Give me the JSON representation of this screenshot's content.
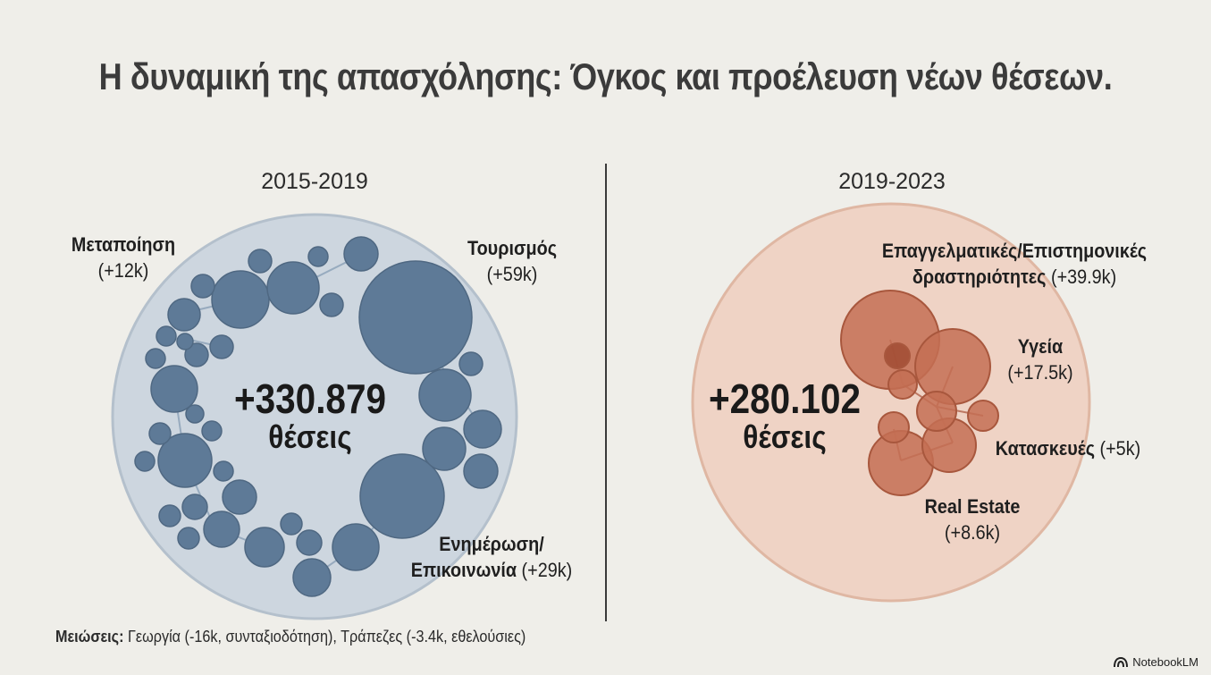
{
  "title": "Η δυναμική της απασχόλησης: Όγκος και προέλευση νέων θέσεων.",
  "left": {
    "period": "2015-2019",
    "total": "+330.879",
    "unit": "θέσεις",
    "sectors": [
      {
        "name": "Μεταποίηση",
        "value": "(+12k)"
      },
      {
        "name": "Τουρισμός",
        "value": "(+59k)"
      },
      {
        "name": "Ενημέρωση/",
        "name2": "Επικοινωνία",
        "value": "(+29k)"
      }
    ]
  },
  "right": {
    "period": "2019-2023",
    "total": "+280.102",
    "unit": "θέσεις",
    "sectors": [
      {
        "name": "Επαγγελματικές/Επιστημονικές",
        "name2": "δραστηριότητες",
        "value": "(+39.9k)"
      },
      {
        "name": "Υγεία",
        "value": "(+17.5k)"
      },
      {
        "name": "Κατασκευές",
        "value": "(+5k)"
      },
      {
        "name": "Real Estate",
        "value": "(+8.6k)"
      }
    ]
  },
  "footnote": {
    "label": "Μειώσεις:",
    "text": " Γεωργία (-16k, συνταξιοδότηση), Τράπεζες (-3.4k, εθελούσιες)"
  },
  "brand": "NotebookLM",
  "colors": {
    "background": "#efeee9",
    "left_circle": "#cdd6df",
    "left_bubble": "#5e7a97",
    "right_circle": "#efd3c5",
    "right_bubble": "#c46f53"
  }
}
